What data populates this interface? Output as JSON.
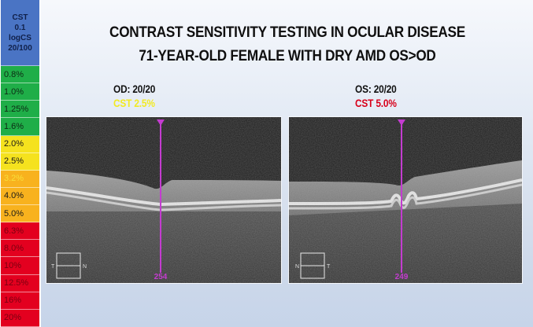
{
  "title": {
    "line1": "CONTRAST SENSITIVITY TESTING IN OCULAR DISEASE",
    "line2": "71-YEAR-OLD FEMALE WITH DRY AMD OS>OD"
  },
  "scale": {
    "header": [
      "CST",
      "0.1",
      "logCS",
      "20/100"
    ],
    "header_color": "#4a74c4",
    "items": [
      {
        "label": "0.8%",
        "bg": "#1fae48",
        "fg": "#0d2a14"
      },
      {
        "label": "1.0%",
        "bg": "#1fae48",
        "fg": "#0d2a14"
      },
      {
        "label": "1.25%",
        "bg": "#1fae48",
        "fg": "#0d2a14"
      },
      {
        "label": "1.6%",
        "bg": "#1fae48",
        "fg": "#0d2a14"
      },
      {
        "label": "2.0%",
        "bg": "#f5e21e",
        "fg": "#1a1a1a"
      },
      {
        "label": "2.5%",
        "bg": "#f5e21e",
        "fg": "#1a1a1a"
      },
      {
        "label": "3.2%",
        "bg": "#f8b21e",
        "fg": "#f8df3a"
      },
      {
        "label": "4.0%",
        "bg": "#f8b21e",
        "fg": "#1a1a1a"
      },
      {
        "label": "5.0%",
        "bg": "#f8b21e",
        "fg": "#1a1a1a"
      },
      {
        "label": "6.3%",
        "bg": "#e3001f",
        "fg": "#7a0010"
      },
      {
        "label": "8.0%",
        "bg": "#e3001f",
        "fg": "#7a0010"
      },
      {
        "label": "10%",
        "bg": "#e3001f",
        "fg": "#7a0010"
      },
      {
        "label": "12.5%",
        "bg": "#e3001f",
        "fg": "#7a0010"
      },
      {
        "label": "16%",
        "bg": "#e3001f",
        "fg": "#7a0010"
      },
      {
        "label": "20%",
        "bg": "#e3001f",
        "fg": "#7a0010"
      }
    ]
  },
  "panels": [
    {
      "eye_label": "OD: 20/20",
      "cst_label": "CST 2.5%",
      "cst_color": "#f2ea24",
      "thickness_value": "254",
      "orientation": {
        "left": "T",
        "right": "N"
      }
    },
    {
      "eye_label": "OS: 20/20",
      "cst_label": "CST 5.0%",
      "cst_color": "#d8001a",
      "thickness_value": "249",
      "orientation": {
        "left": "N",
        "right": "T"
      }
    }
  ],
  "colors": {
    "marker": "#c43cd0",
    "scan_bg": "#1c1c1c"
  }
}
